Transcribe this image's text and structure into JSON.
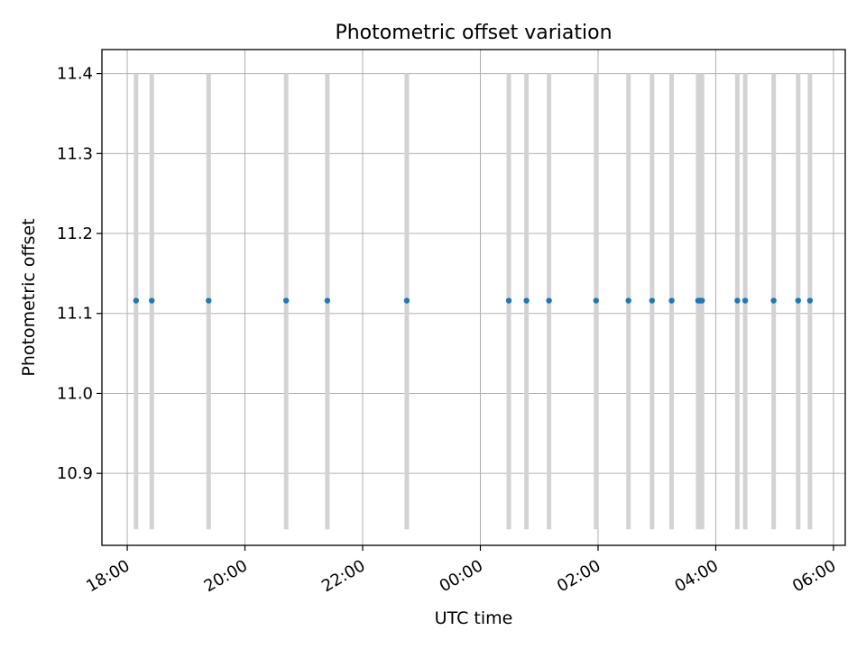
{
  "chart_data": {
    "type": "scatter",
    "title": "Photometric offset variation",
    "xlabel": "UTC time",
    "ylabel": "Photometric offset",
    "x_unit": "hours_since_18:00",
    "x_ticks": [
      "18:00",
      "20:00",
      "22:00",
      "00:00",
      "02:00",
      "04:00",
      "06:00"
    ],
    "x_tick_values": [
      0,
      2,
      4,
      6,
      8,
      10,
      12
    ],
    "y_ticks": [
      "10.9",
      "11.0",
      "11.1",
      "11.2",
      "11.3",
      "11.4"
    ],
    "y_tick_values": [
      10.9,
      11.0,
      11.1,
      11.2,
      11.3,
      11.4
    ],
    "xlim": [
      -0.43,
      12.2
    ],
    "ylim": [
      10.81,
      11.43
    ],
    "grid": true,
    "marker_color": "#1f77b4",
    "errorbar_color": "#d3d3d3",
    "series": [
      {
        "x_labels": [
          "18:09",
          "18:25",
          "19:23",
          "20:42",
          "21:24",
          "22:45",
          "00:29",
          "00:47",
          "01:10",
          "01:58",
          "02:31",
          "02:55",
          "03:15",
          "03:42",
          "03:44",
          "03:46",
          "04:22",
          "04:30",
          "04:59",
          "05:24",
          "05:36"
        ],
        "y": [
          11.116,
          11.116,
          11.116,
          11.116,
          11.116,
          11.116,
          11.116,
          11.116,
          11.116,
          11.116,
          11.116,
          11.116,
          11.116,
          11.116,
          11.116,
          11.116,
          11.116,
          11.116,
          11.116,
          11.116,
          11.116
        ],
        "y_lower": [
          10.83,
          10.83,
          10.83,
          10.83,
          10.83,
          10.83,
          10.83,
          10.83,
          10.83,
          10.83,
          10.83,
          10.83,
          10.83,
          10.83,
          10.83,
          10.83,
          10.83,
          10.83,
          10.83,
          10.83,
          10.83
        ],
        "y_upper": [
          11.4,
          11.4,
          11.4,
          11.4,
          11.4,
          11.4,
          11.4,
          11.4,
          11.4,
          11.4,
          11.4,
          11.4,
          11.4,
          11.4,
          11.4,
          11.4,
          11.4,
          11.4,
          11.4,
          11.4,
          11.4
        ]
      }
    ]
  }
}
